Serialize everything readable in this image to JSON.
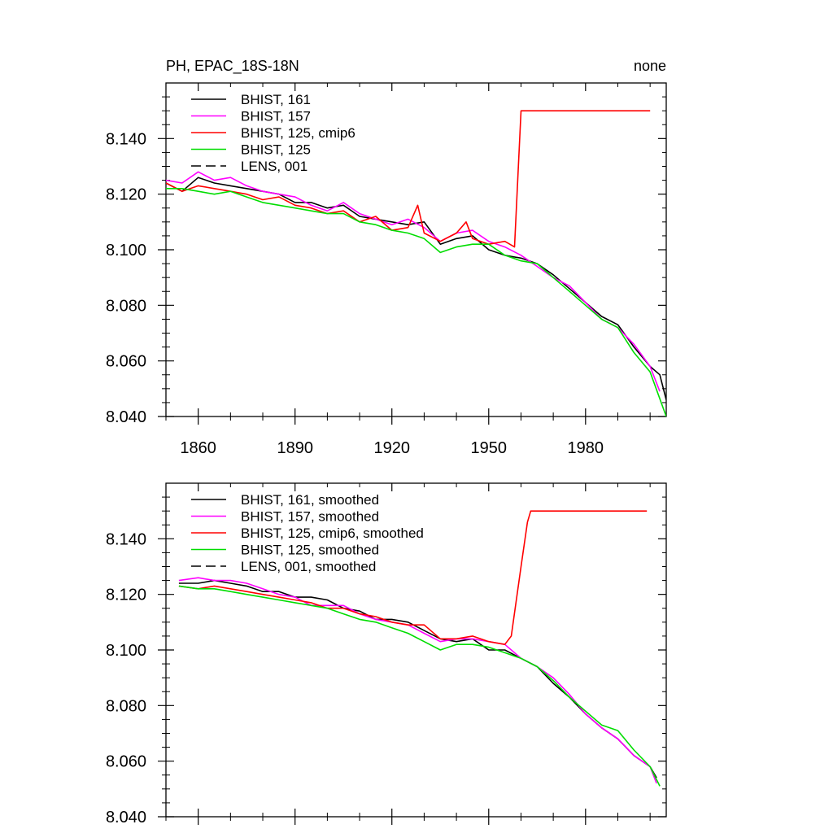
{
  "chart_data": [
    {
      "type": "line",
      "title": "PH, EPAC_18S-18N",
      "right_title": "none",
      "xlim": [
        1850,
        2005
      ],
      "ylim": [
        8.04,
        8.16
      ],
      "xticks": [
        1860,
        1890,
        1920,
        1950,
        1980
      ],
      "xtick_labels": [
        "1860",
        "1890",
        "1920",
        "1950",
        "1980"
      ],
      "yticks": [
        8.04,
        8.06,
        8.08,
        8.1,
        8.12,
        8.14
      ],
      "ytick_labels": [
        "8.040",
        "8.060",
        "8.080",
        "8.100",
        "8.120",
        "8.140"
      ],
      "legend_position": "top-left",
      "series": [
        {
          "name": "BHIST, 161",
          "color": "#000000",
          "dash": "solid",
          "x": [
            1850,
            1855,
            1860,
            1865,
            1870,
            1875,
            1880,
            1885,
            1890,
            1895,
            1900,
            1905,
            1910,
            1915,
            1920,
            1925,
            1930,
            1935,
            1940,
            1945,
            1950,
            1955,
            1960,
            1965,
            1970,
            1975,
            1980,
            1985,
            1990,
            1995,
            2000,
            2003,
            2005
          ],
          "y": [
            8.124,
            8.121,
            8.126,
            8.124,
            8.123,
            8.122,
            8.121,
            8.12,
            8.117,
            8.117,
            8.115,
            8.116,
            8.112,
            8.111,
            8.11,
            8.109,
            8.11,
            8.102,
            8.104,
            8.105,
            8.1,
            8.098,
            8.097,
            8.095,
            8.091,
            8.086,
            8.081,
            8.076,
            8.073,
            8.065,
            8.058,
            8.055,
            8.046
          ]
        },
        {
          "name": "BHIST, 157",
          "color": "#ff00ff",
          "dash": "solid",
          "x": [
            1850,
            1855,
            1860,
            1865,
            1870,
            1875,
            1880,
            1885,
            1890,
            1895,
            1900,
            1905,
            1910,
            1915,
            1920,
            1925,
            1930,
            1935,
            1940,
            1945,
            1950,
            1955,
            1960,
            1965,
            1970,
            1975,
            1980,
            1985,
            1990,
            1995,
            2000,
            2003
          ],
          "y": [
            8.125,
            8.124,
            8.128,
            8.125,
            8.126,
            8.123,
            8.121,
            8.12,
            8.119,
            8.116,
            8.114,
            8.117,
            8.113,
            8.111,
            8.109,
            8.111,
            8.108,
            8.103,
            8.106,
            8.107,
            8.103,
            8.101,
            8.098,
            8.094,
            8.09,
            8.087,
            8.081,
            8.075,
            8.072,
            8.066,
            8.058,
            8.049
          ]
        },
        {
          "name": "BHIST, 125, cmip6",
          "color": "#ff0000",
          "dash": "solid",
          "x": [
            1850,
            1855,
            1860,
            1865,
            1870,
            1875,
            1880,
            1885,
            1890,
            1895,
            1900,
            1905,
            1910,
            1915,
            1920,
            1925,
            1928,
            1930,
            1935,
            1940,
            1943,
            1945,
            1950,
            1955,
            1958,
            1960,
            1962,
            1970,
            1980,
            1990,
            2000
          ],
          "y": [
            8.124,
            8.121,
            8.123,
            8.122,
            8.121,
            8.12,
            8.118,
            8.119,
            8.116,
            8.115,
            8.113,
            8.114,
            8.11,
            8.112,
            8.107,
            8.108,
            8.116,
            8.106,
            8.103,
            8.106,
            8.11,
            8.104,
            8.102,
            8.103,
            8.101,
            8.15,
            8.15,
            8.15,
            8.15,
            8.15,
            8.15
          ]
        },
        {
          "name": "BHIST, 125",
          "color": "#00dd00",
          "dash": "solid",
          "x": [
            1850,
            1855,
            1860,
            1865,
            1870,
            1875,
            1880,
            1885,
            1890,
            1895,
            1900,
            1905,
            1910,
            1915,
            1920,
            1925,
            1930,
            1935,
            1940,
            1945,
            1950,
            1955,
            1960,
            1965,
            1970,
            1975,
            1980,
            1985,
            1990,
            1995,
            2000,
            2005
          ],
          "y": [
            8.122,
            8.122,
            8.121,
            8.12,
            8.121,
            8.119,
            8.117,
            8.116,
            8.115,
            8.114,
            8.113,
            8.113,
            8.11,
            8.109,
            8.107,
            8.106,
            8.104,
            8.099,
            8.101,
            8.102,
            8.102,
            8.098,
            8.096,
            8.095,
            8.09,
            8.085,
            8.08,
            8.075,
            8.072,
            8.063,
            8.056,
            8.04
          ]
        },
        {
          "name": "LENS, 001",
          "color": "#000000",
          "dash": "dashed",
          "x": [],
          "y": []
        }
      ]
    },
    {
      "type": "line",
      "title": "",
      "xlim": [
        1850,
        2005
      ],
      "ylim": [
        8.04,
        8.16
      ],
      "xticks": [
        1860,
        1890,
        1920,
        1950,
        1980
      ],
      "yticks": [
        8.04,
        8.06,
        8.08,
        8.1,
        8.12,
        8.14
      ],
      "ytick_labels": [
        "8.040",
        "8.060",
        "8.080",
        "8.100",
        "8.120",
        "8.140"
      ],
      "legend_position": "top-left",
      "series": [
        {
          "name": "BHIST, 161, smoothed",
          "color": "#000000",
          "dash": "solid",
          "x": [
            1854,
            1860,
            1865,
            1870,
            1875,
            1880,
            1885,
            1890,
            1895,
            1900,
            1905,
            1910,
            1915,
            1920,
            1925,
            1930,
            1935,
            1940,
            1945,
            1950,
            1955,
            1960,
            1965,
            1970,
            1975,
            1980,
            1985,
            1990,
            1995,
            2000,
            2002
          ],
          "y": [
            8.124,
            8.124,
            8.125,
            8.124,
            8.123,
            8.121,
            8.121,
            8.119,
            8.119,
            8.118,
            8.115,
            8.114,
            8.111,
            8.111,
            8.11,
            8.107,
            8.104,
            8.103,
            8.104,
            8.1,
            8.1,
            8.097,
            8.094,
            8.088,
            8.083,
            8.077,
            8.072,
            8.068,
            8.062,
            8.058,
            8.054
          ]
        },
        {
          "name": "BHIST, 157, smoothed",
          "color": "#ff00ff",
          "dash": "solid",
          "x": [
            1854,
            1860,
            1865,
            1870,
            1875,
            1880,
            1885,
            1890,
            1895,
            1900,
            1905,
            1910,
            1915,
            1920,
            1925,
            1930,
            1935,
            1940,
            1945,
            1950,
            1955,
            1960,
            1965,
            1970,
            1975,
            1980,
            1985,
            1990,
            1995,
            2000,
            2002
          ],
          "y": [
            8.125,
            8.126,
            8.125,
            8.125,
            8.124,
            8.122,
            8.12,
            8.119,
            8.116,
            8.116,
            8.116,
            8.113,
            8.111,
            8.11,
            8.109,
            8.106,
            8.103,
            8.104,
            8.104,
            8.103,
            8.102,
            8.097,
            8.094,
            8.09,
            8.084,
            8.077,
            8.072,
            8.068,
            8.062,
            8.058,
            8.052
          ]
        },
        {
          "name": "BHIST, 125, cmip6, smoothed",
          "color": "#ff0000",
          "dash": "solid",
          "x": [
            1854,
            1860,
            1865,
            1870,
            1875,
            1880,
            1885,
            1890,
            1895,
            1900,
            1905,
            1910,
            1915,
            1920,
            1925,
            1930,
            1935,
            1940,
            1945,
            1950,
            1955,
            1957,
            1960,
            1962,
            1963,
            1965,
            1970,
            1980,
            1990,
            1999
          ],
          "y": [
            8.123,
            8.122,
            8.123,
            8.122,
            8.121,
            8.12,
            8.119,
            8.118,
            8.117,
            8.115,
            8.115,
            8.113,
            8.112,
            8.11,
            8.109,
            8.109,
            8.104,
            8.104,
            8.105,
            8.103,
            8.102,
            8.105,
            8.13,
            8.146,
            8.15,
            8.15,
            8.15,
            8.15,
            8.15,
            8.15
          ]
        },
        {
          "name": "BHIST, 125, smoothed",
          "color": "#00dd00",
          "dash": "solid",
          "x": [
            1854,
            1860,
            1865,
            1870,
            1875,
            1880,
            1885,
            1890,
            1895,
            1900,
            1905,
            1910,
            1915,
            1920,
            1925,
            1930,
            1935,
            1940,
            1945,
            1950,
            1955,
            1960,
            1965,
            1970,
            1975,
            1980,
            1985,
            1990,
            1995,
            2000,
            2003
          ],
          "y": [
            8.123,
            8.122,
            8.122,
            8.121,
            8.12,
            8.119,
            8.118,
            8.117,
            8.116,
            8.115,
            8.113,
            8.111,
            8.11,
            8.108,
            8.106,
            8.103,
            8.1,
            8.102,
            8.102,
            8.101,
            8.099,
            8.097,
            8.094,
            8.089,
            8.083,
            8.078,
            8.073,
            8.071,
            8.064,
            8.058,
            8.051
          ]
        },
        {
          "name": "LENS, 001, smoothed",
          "color": "#000000",
          "dash": "dashed",
          "x": [],
          "y": []
        }
      ]
    }
  ]
}
